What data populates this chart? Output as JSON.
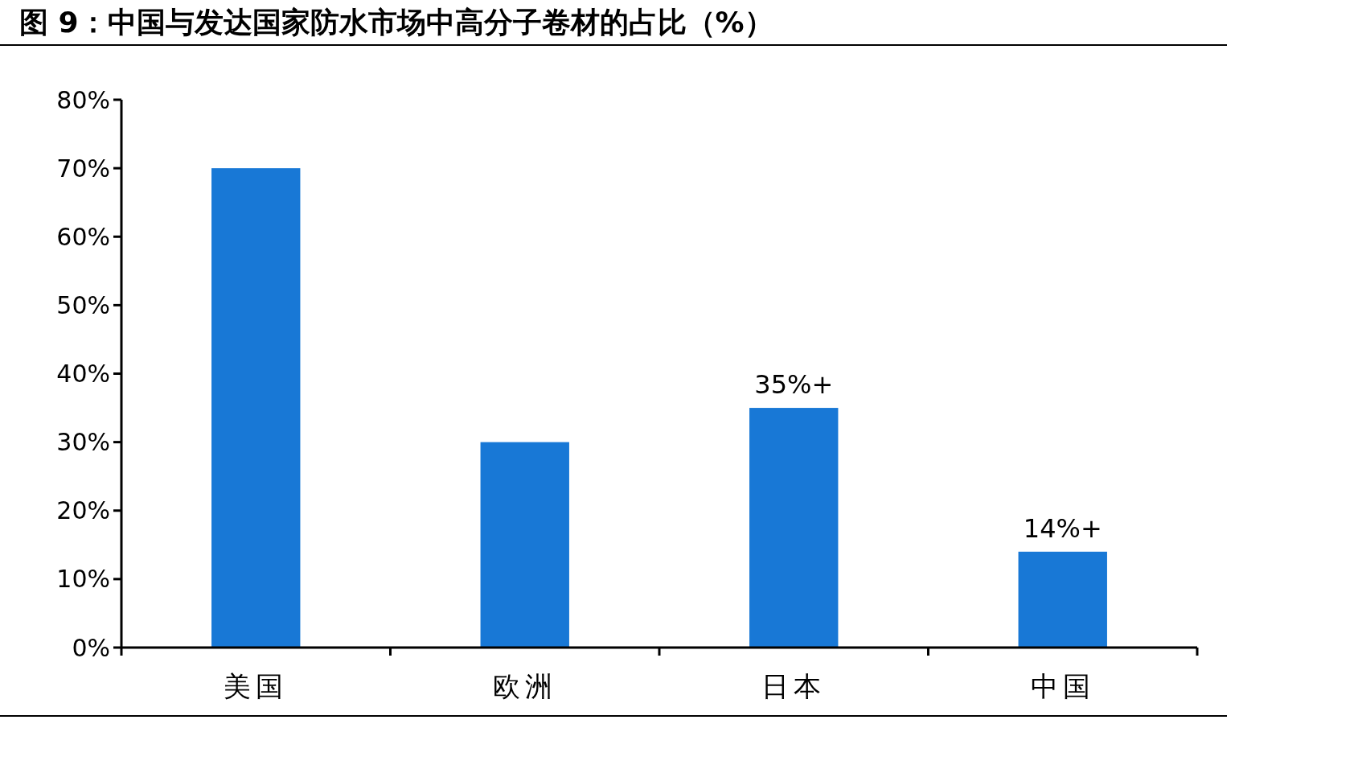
{
  "chart_data": {
    "type": "bar",
    "title": "图 9：中国与发达国家防水市场中高分子卷材的占比（%）",
    "categories": [
      "美国",
      "欧洲",
      "日本",
      "中国"
    ],
    "values": [
      70,
      30,
      35,
      14
    ],
    "value_labels": [
      null,
      null,
      "35%+",
      "14%+"
    ],
    "color": "#1878d6",
    "ylim": [
      0,
      80
    ],
    "yticks": [
      {
        "value": 0,
        "label": "0%"
      },
      {
        "value": 10,
        "label": "10%"
      },
      {
        "value": 20,
        "label": "20%"
      },
      {
        "value": 30,
        "label": "30%"
      },
      {
        "value": 40,
        "label": "40%"
      },
      {
        "value": 50,
        "label": "50%"
      },
      {
        "value": 60,
        "label": "60%"
      },
      {
        "value": 70,
        "label": "70%"
      },
      {
        "value": 80,
        "label": "80%"
      }
    ],
    "grid": false
  }
}
